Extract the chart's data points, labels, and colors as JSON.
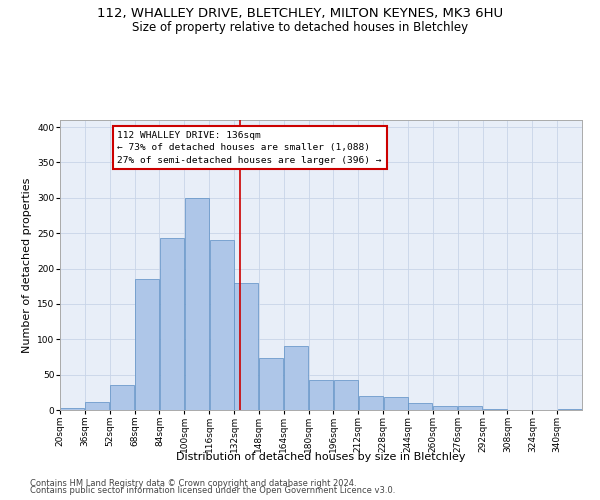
{
  "title": "112, WHALLEY DRIVE, BLETCHLEY, MILTON KEYNES, MK3 6HU",
  "subtitle": "Size of property relative to detached houses in Bletchley",
  "xlabel": "Distribution of detached houses by size in Bletchley",
  "ylabel": "Number of detached properties",
  "footer1": "Contains HM Land Registry data © Crown copyright and database right 2024.",
  "footer2": "Contains public sector information licensed under the Open Government Licence v3.0.",
  "bin_labels": [
    "20sqm",
    "36sqm",
    "52sqm",
    "68sqm",
    "84sqm",
    "100sqm",
    "116sqm",
    "132sqm",
    "148sqm",
    "164sqm",
    "180sqm",
    "196sqm",
    "212sqm",
    "228sqm",
    "244sqm",
    "260sqm",
    "276sqm",
    "292sqm",
    "308sqm",
    "324sqm",
    "340sqm"
  ],
  "bar_heights": [
    3,
    12,
    35,
    185,
    243,
    300,
    240,
    180,
    73,
    90,
    43,
    42,
    20,
    19,
    10,
    6,
    5,
    1,
    0,
    0,
    2
  ],
  "bin_edges": [
    20,
    36,
    52,
    68,
    84,
    100,
    116,
    132,
    148,
    164,
    180,
    196,
    212,
    228,
    244,
    260,
    276,
    292,
    308,
    324,
    340,
    356
  ],
  "bar_color": "#aec6e8",
  "bar_edge_color": "#5b8ec4",
  "property_line_x": 136,
  "annotation_text_line1": "112 WHALLEY DRIVE: 136sqm",
  "annotation_text_line2": "← 73% of detached houses are smaller (1,088)",
  "annotation_text_line3": "27% of semi-detached houses are larger (396) →",
  "annotation_box_color": "#ffffff",
  "annotation_box_edge_color": "#cc0000",
  "vertical_line_color": "#cc0000",
  "ylim": [
    0,
    410
  ],
  "yticks": [
    0,
    50,
    100,
    150,
    200,
    250,
    300,
    350,
    400
  ],
  "grid_color": "#c8d4e8",
  "bg_color": "#e8eef8",
  "title_fontsize": 9.5,
  "subtitle_fontsize": 8.5,
  "xlabel_fontsize": 8,
  "ylabel_fontsize": 8,
  "tick_fontsize": 6.5,
  "footer_fontsize": 6
}
